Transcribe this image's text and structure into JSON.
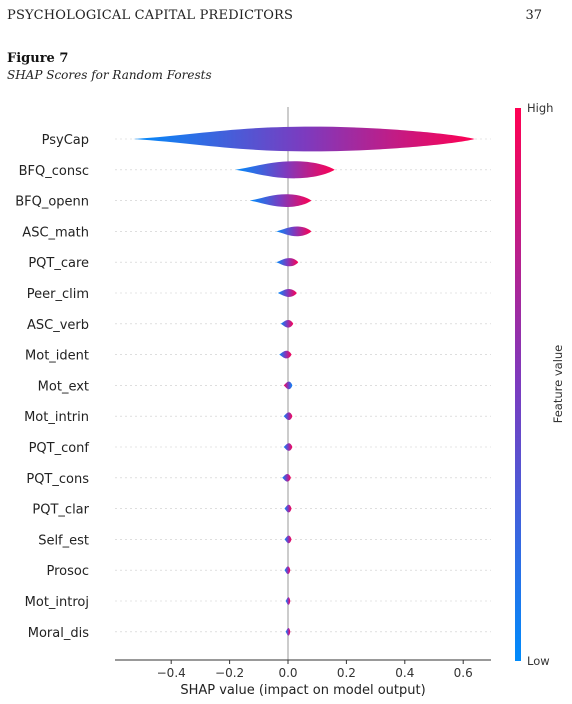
{
  "running_head": "PSYCHOLOGICAL CAPITAL PREDICTORS",
  "page_number": "37",
  "figure_label": "Figure 7",
  "figure_caption": "SHAP Scores for Random Forests",
  "colors": {
    "low": "#008bfb",
    "mid": "#7c3bbf",
    "high": "#ff0052",
    "zero_line": "#999999",
    "grid_dash": "#cccccc"
  },
  "chart_data": {
    "type": "violin",
    "title": "",
    "xlabel": "SHAP value (impact on model output)",
    "ylabel": "",
    "xlim": [
      -0.6,
      0.7
    ],
    "x_ticks": [
      -0.4,
      -0.2,
      0.0,
      0.2,
      0.4,
      0.6
    ],
    "x_tick_labels": [
      "−0.4",
      "−0.2",
      "0.0",
      "0.2",
      "0.4",
      "0.6"
    ],
    "colorbar": {
      "label": "Feature value",
      "high_label": "High",
      "low_label": "Low"
    },
    "features": [
      {
        "name": "PsyCap",
        "min": -0.53,
        "max": 0.64,
        "low_end": -0.53,
        "high_end": 0.64
      },
      {
        "name": "BFQ_consc",
        "min": -0.18,
        "max": 0.16,
        "low_end": -0.18,
        "high_end": 0.16
      },
      {
        "name": "BFQ_openn",
        "min": -0.13,
        "max": 0.08,
        "low_end": -0.13,
        "high_end": 0.08
      },
      {
        "name": "ASC_math",
        "min": -0.04,
        "max": 0.08,
        "low_end": -0.04,
        "high_end": 0.08
      },
      {
        "name": "PQT_care",
        "min": -0.04,
        "max": 0.035,
        "low_end": -0.04,
        "high_end": 0.035
      },
      {
        "name": "Peer_clim",
        "min": -0.035,
        "max": 0.03,
        "low_end": -0.035,
        "high_end": 0.03
      },
      {
        "name": "ASC_verb",
        "min": -0.025,
        "max": 0.018,
        "low_end": -0.025,
        "high_end": 0.018
      },
      {
        "name": "Mot_ident",
        "min": -0.03,
        "max": 0.012,
        "low_end": -0.03,
        "high_end": 0.012
      },
      {
        "name": "Mot_ext",
        "min": -0.015,
        "max": 0.015,
        "low_end": 0.015,
        "high_end": -0.015
      },
      {
        "name": "Mot_intrin",
        "min": -0.015,
        "max": 0.015,
        "low_end": -0.015,
        "high_end": 0.015
      },
      {
        "name": "PQT_conf",
        "min": -0.015,
        "max": 0.015,
        "low_end": -0.015,
        "high_end": 0.015
      },
      {
        "name": "PQT_cons",
        "min": -0.02,
        "max": 0.01,
        "low_end": -0.02,
        "high_end": 0.01
      },
      {
        "name": "PQT_clar",
        "min": -0.012,
        "max": 0.012,
        "low_end": -0.012,
        "high_end": 0.012
      },
      {
        "name": "Self_est",
        "min": -0.012,
        "max": 0.012,
        "low_end": -0.012,
        "high_end": 0.012
      },
      {
        "name": "Prosoc",
        "min": -0.012,
        "max": 0.008,
        "low_end": -0.012,
        "high_end": 0.008
      },
      {
        "name": "Mot_introj",
        "min": -0.008,
        "max": 0.008,
        "low_end": -0.008,
        "high_end": 0.008
      },
      {
        "name": "Moral_dis",
        "min": -0.008,
        "max": 0.008,
        "low_end": -0.008,
        "high_end": 0.008
      }
    ]
  }
}
